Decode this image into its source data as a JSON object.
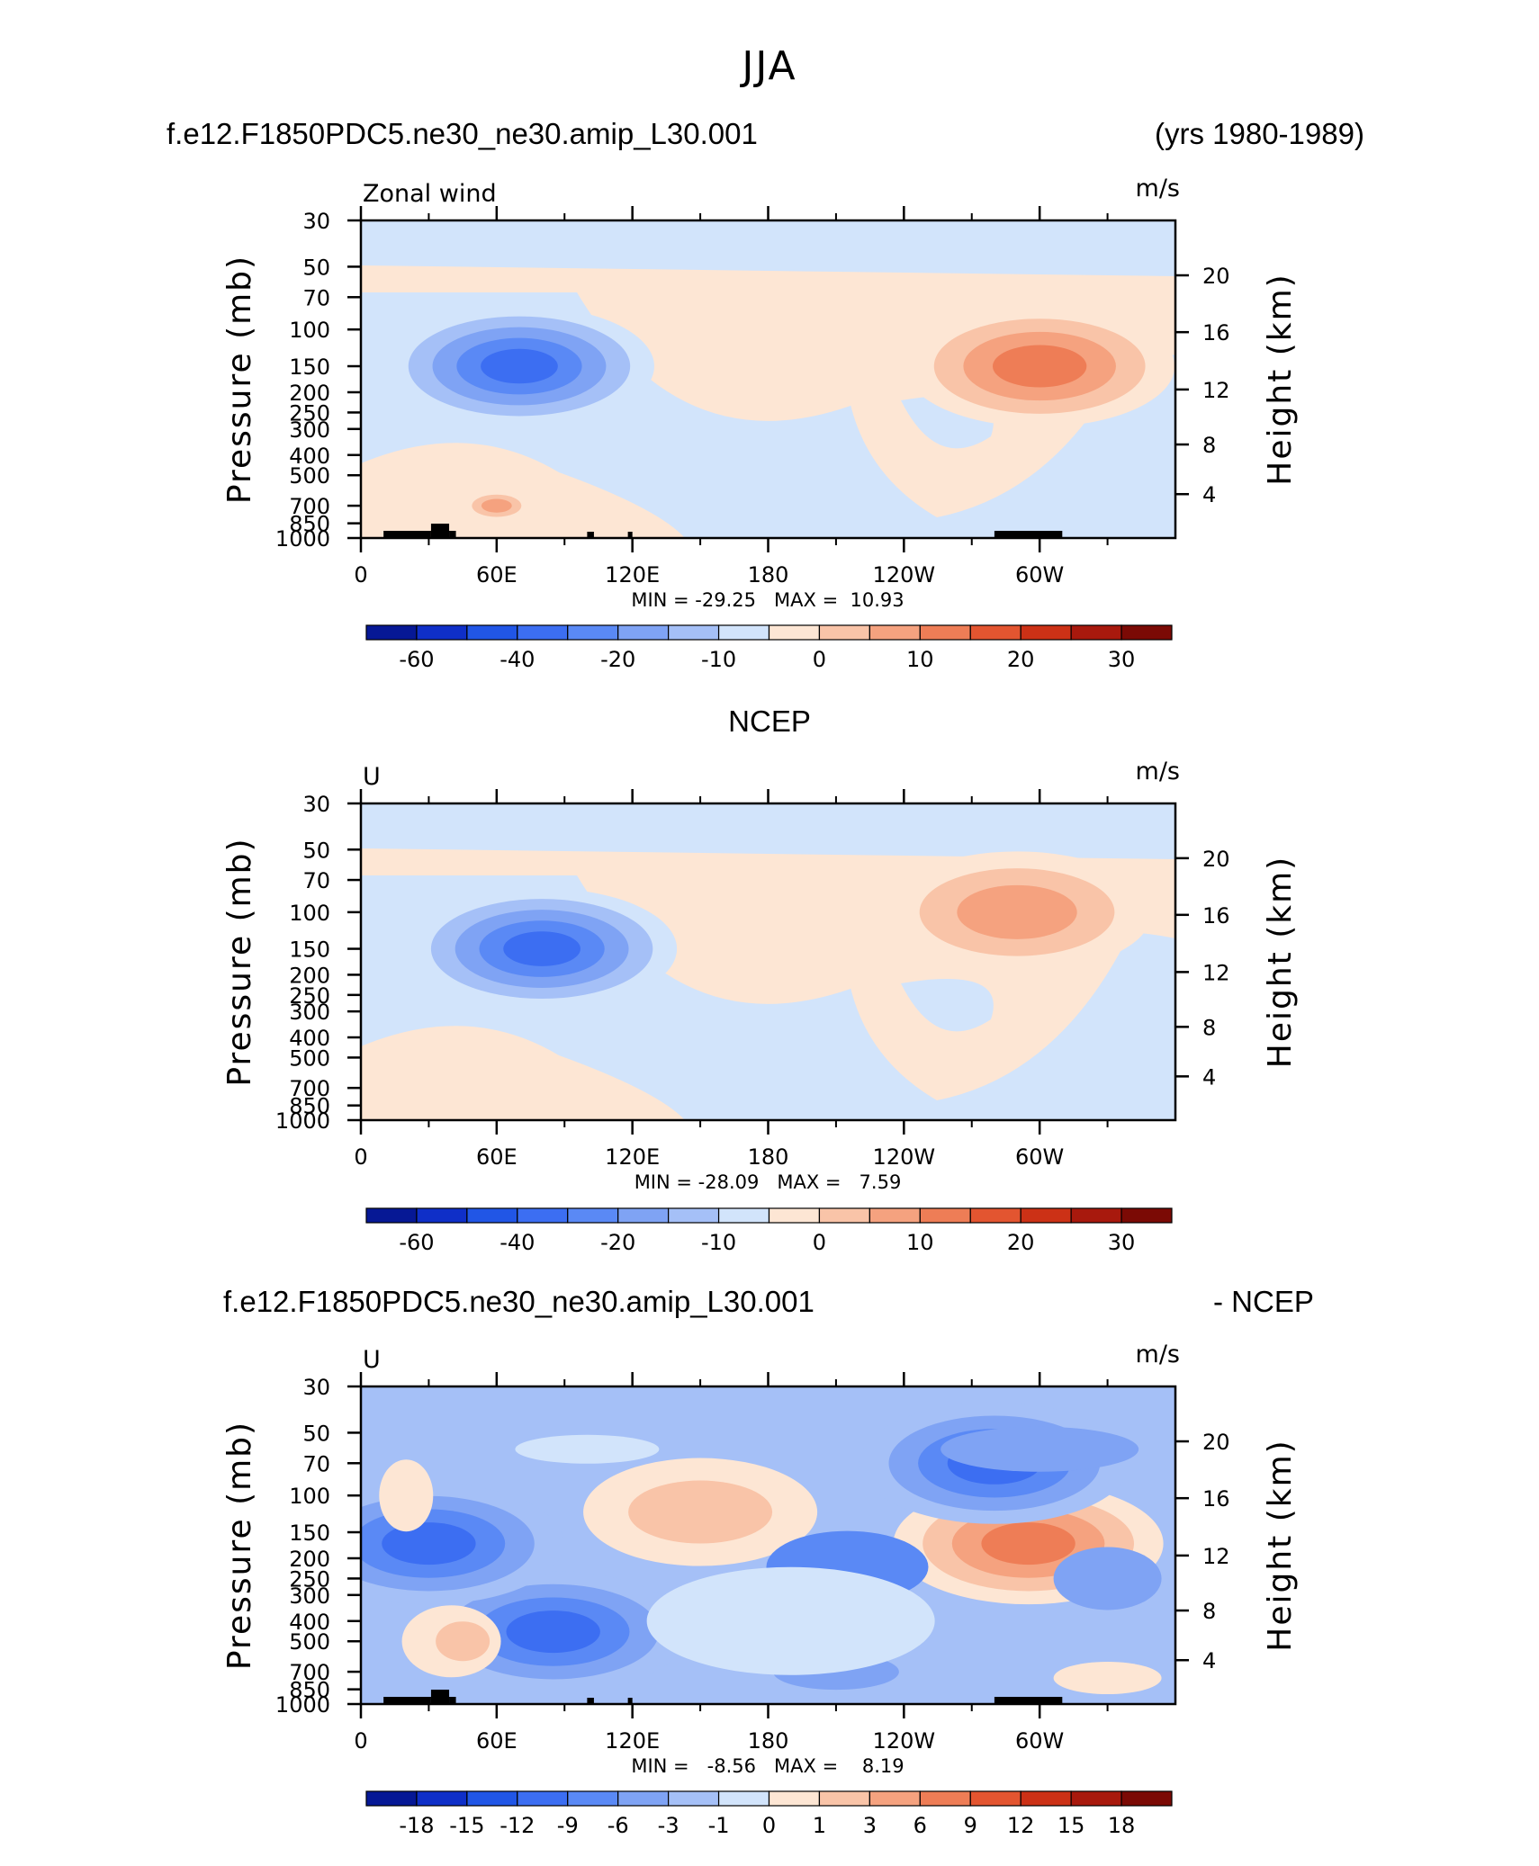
{
  "figure": {
    "title": "JJA",
    "header_left": "f.e12.F1850PDC5.ne30_ne30.amip_L30.001",
    "header_right": "(yrs 1980-1989)",
    "panel2_title": "NCEP",
    "panel3_left": "f.e12.F1850PDC5.ne30_ne30.amip_L30.001",
    "panel3_right": "- NCEP"
  },
  "chart_data": [
    {
      "type": "heatmap",
      "variable_label": "Zonal wind",
      "units": "m/s",
      "xlabel": "",
      "ylabel_left": "Pressure (mb)",
      "ylabel_right": "Height (km)",
      "x_ticks": [
        "0",
        "60E",
        "120E",
        "180",
        "120W",
        "60W"
      ],
      "x_range_lon_east": [
        0,
        360
      ],
      "y_ticks_pressure": [
        30,
        50,
        70,
        100,
        150,
        200,
        250,
        300,
        400,
        500,
        700,
        850,
        1000
      ],
      "y_range_pressure_mb": [
        1000,
        30
      ],
      "y_scale": "log",
      "y_ticks_height_km": [
        4,
        8,
        12,
        16,
        20
      ],
      "min": "-29.25",
      "max": "10.93",
      "stats_text": "MIN = -29.25   MAX =  10.93",
      "colorbar_labels": [
        "-60",
        "-40",
        "-20",
        "-10",
        "0",
        "10",
        "20",
        "30"
      ],
      "colorbar_levels": [
        -70,
        -60,
        -50,
        -40,
        -30,
        -20,
        -15,
        -10,
        -5,
        0,
        5,
        10,
        15,
        20,
        25,
        30,
        35
      ],
      "features": [
        {
          "kind": "jet",
          "sign": "negative",
          "lon": 70,
          "pressure_mb": 150,
          "peak": -29.25
        },
        {
          "kind": "jet",
          "sign": "positive",
          "lon": 300,
          "pressure_mb": 150,
          "peak": 10.93
        },
        {
          "kind": "low-level jet",
          "sign": "positive",
          "lon": 60,
          "pressure_mb": 700,
          "peak": 7
        }
      ],
      "topography_mask": true
    },
    {
      "type": "heatmap",
      "variable_label": "U",
      "units": "m/s",
      "ylabel_left": "Pressure (mb)",
      "ylabel_right": "Height (km)",
      "x_ticks": [
        "0",
        "60E",
        "120E",
        "180",
        "120W",
        "60W"
      ],
      "y_ticks_pressure": [
        30,
        50,
        70,
        100,
        150,
        200,
        250,
        300,
        400,
        500,
        700,
        850,
        1000
      ],
      "y_scale": "log",
      "y_ticks_height_km": [
        4,
        8,
        12,
        16,
        20
      ],
      "min": "-28.09",
      "max": "7.59",
      "stats_text": "MIN = -28.09   MAX =   7.59",
      "colorbar_labels": [
        "-60",
        "-40",
        "-20",
        "-10",
        "0",
        "10",
        "20",
        "30"
      ],
      "colorbar_levels": [
        -70,
        -60,
        -50,
        -40,
        -30,
        -20,
        -15,
        -10,
        -5,
        0,
        5,
        10,
        15,
        20,
        25,
        30,
        35
      ],
      "features": [
        {
          "kind": "jet",
          "sign": "negative",
          "lon": 80,
          "pressure_mb": 150,
          "peak": -28.09
        },
        {
          "kind": "jet",
          "sign": "positive",
          "lon": 290,
          "pressure_mb": 100,
          "peak": 7.59
        }
      ],
      "topography_mask": false
    },
    {
      "type": "heatmap",
      "variable_label": "U",
      "units": "m/s",
      "ylabel_left": "Pressure (mb)",
      "ylabel_right": "Height (km)",
      "x_ticks": [
        "0",
        "60E",
        "120E",
        "180",
        "120W",
        "60W"
      ],
      "y_ticks_pressure": [
        30,
        50,
        70,
        100,
        150,
        200,
        250,
        300,
        400,
        500,
        700,
        850,
        1000
      ],
      "y_scale": "log",
      "y_ticks_height_km": [
        4,
        8,
        12,
        16,
        20
      ],
      "min": "-8.56",
      "max": "8.19",
      "stats_text": "MIN =   -8.56   MAX =    8.19",
      "colorbar_labels": [
        "-18",
        "-15",
        "-12",
        "-9",
        "-6",
        "-3",
        "-1",
        "0",
        "1",
        "3",
        "6",
        "9",
        "12",
        "15",
        "18"
      ],
      "colorbar_levels": [
        -21,
        -18,
        -15,
        -12,
        -9,
        -6,
        -3,
        -1,
        0,
        1,
        3,
        6,
        9,
        12,
        15,
        18,
        21
      ],
      "features": [
        {
          "kind": "anomaly",
          "sign": "positive",
          "lon": 295,
          "pressure_mb": 170,
          "peak": 8.19
        },
        {
          "kind": "anomaly",
          "sign": "negative",
          "lon": 280,
          "pressure_mb": 70,
          "peak": -7
        },
        {
          "kind": "anomaly",
          "sign": "negative",
          "lon": 85,
          "pressure_mb": 450,
          "peak": -8.56
        },
        {
          "kind": "anomaly",
          "sign": "negative",
          "lon": 30,
          "pressure_mb": 170,
          "peak": -7
        }
      ],
      "topography_mask": true
    }
  ],
  "colors": {
    "diverging_palette": [
      "#061895",
      "#0f2fc8",
      "#2156e6",
      "#3c6ef2",
      "#5a89f5",
      "#7fa3f4",
      "#a5c0f7",
      "#d2e4fb",
      "#fde6d4",
      "#f9c4a8",
      "#f5a27f",
      "#ee7d56",
      "#e35530",
      "#cc3116",
      "#a8190d",
      "#7b0a05"
    ]
  }
}
